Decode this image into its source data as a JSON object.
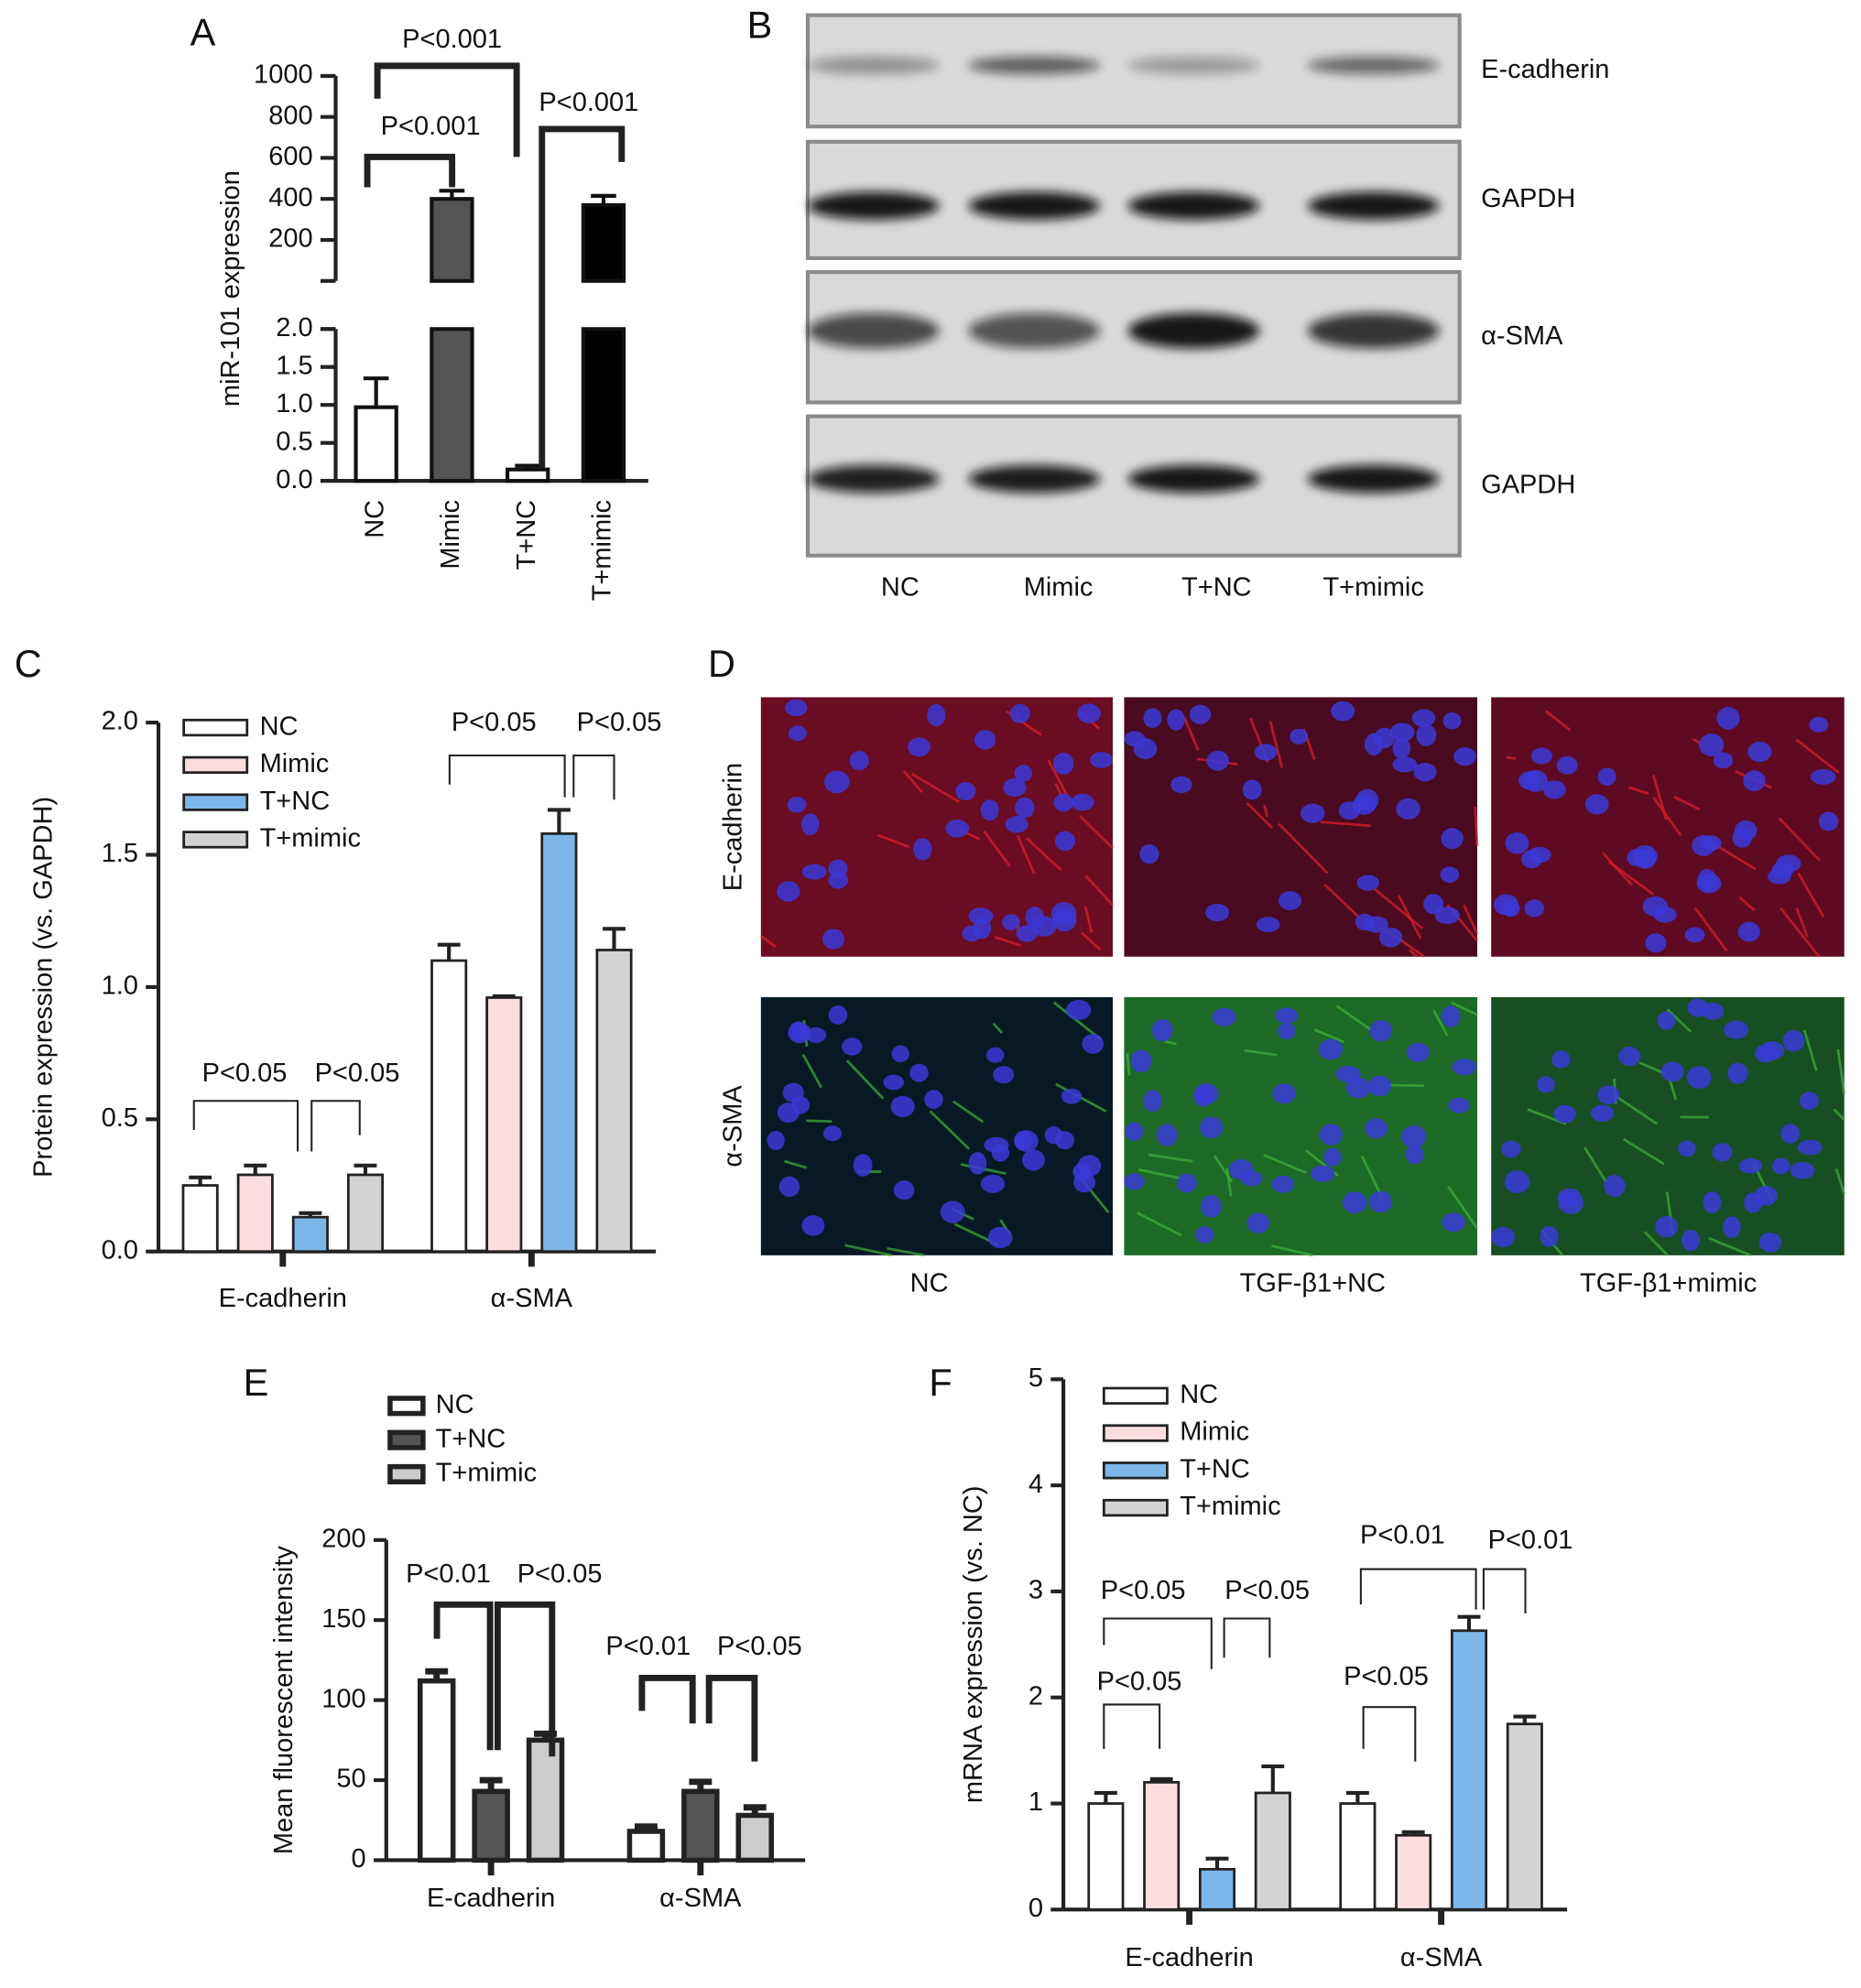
{
  "chart_data": [
    {
      "panel": "A",
      "type": "bar",
      "ylabel": "miR-101 expression",
      "categories": [
        "NC",
        "Mimic",
        "T+NC",
        "T+mimic"
      ],
      "values": [
        0.97,
        400,
        0.15,
        370
      ],
      "errors": [
        0.38,
        40,
        0.05,
        45
      ],
      "colors": [
        "#ffffff",
        "#555555",
        "#ffffff",
        "#000000"
      ],
      "ylim": [
        0,
        2
      ],
      "yticks": [
        {
          "value": 0,
          "label": "0.0"
        },
        {
          "value": 0.5,
          "label": "0.5"
        },
        {
          "value": 1,
          "label": "1.0"
        },
        {
          "value": 1.5,
          "label": "1.5"
        },
        {
          "value": 2,
          "label": "2.0"
        }
      ],
      "axis_break": {
        "ylim": [
          0,
          1000
        ],
        "yticks": [
          200,
          400,
          600,
          800,
          1000
        ]
      },
      "annotations": [
        "P<0.001",
        "P<0.001",
        "P<0.001"
      ]
    },
    {
      "panel": "C",
      "type": "grouped_bar",
      "ylabel": "Protein expression (vs. GAPDH)",
      "categories": [
        "E-cadherin",
        "α-SMA"
      ],
      "series": [
        {
          "name": "NC",
          "color": "#ffffff",
          "values": [
            0.25,
            1.1
          ],
          "errors": [
            0.03,
            0.06
          ]
        },
        {
          "name": "Mimic",
          "color": "#fbdcdf",
          "values": [
            0.29,
            0.96
          ],
          "errors": [
            0.035,
            0.005
          ]
        },
        {
          "name": "T+NC",
          "color": "#7db6e8",
          "values": [
            0.13,
            1.58
          ],
          "errors": [
            0.015,
            0.09
          ]
        },
        {
          "name": "T+mimic",
          "color": "#d3d3d3",
          "values": [
            0.29,
            1.14
          ],
          "errors": [
            0.035,
            0.08
          ]
        }
      ],
      "ylim": [
        0,
        2
      ],
      "yticks": [
        {
          "value": 0,
          "label": "0.0"
        },
        {
          "value": 0.5,
          "label": "0.5"
        },
        {
          "value": 1,
          "label": "1.0"
        },
        {
          "value": 1.5,
          "label": "1.5"
        },
        {
          "value": 2,
          "label": "2.0"
        }
      ],
      "annotations": [
        "P<0.05",
        "P<0.05",
        "P<0.05",
        "P<0.05"
      ]
    },
    {
      "panel": "E",
      "type": "grouped_bar",
      "ylabel": "Mean fluorescent intensity",
      "categories": [
        "E-cadherin",
        "α-SMA"
      ],
      "series": [
        {
          "name": "NC",
          "color": "#ffffff",
          "values": [
            112,
            18
          ],
          "errors": [
            6,
            3
          ]
        },
        {
          "name": "T+NC",
          "color": "#555555",
          "values": [
            43,
            43
          ],
          "errors": [
            7,
            6
          ]
        },
        {
          "name": "T+mimic",
          "color": "#cccccc",
          "values": [
            75,
            28
          ],
          "errors": [
            4,
            5
          ]
        }
      ],
      "ylim": [
        0,
        200
      ],
      "yticks": [
        0,
        50,
        100,
        150,
        200
      ],
      "annotations": [
        "P<0.01",
        "P<0.05",
        "P<0.01",
        "P<0.05"
      ]
    },
    {
      "panel": "F",
      "type": "grouped_bar",
      "ylabel": "mRNA expression (vs. NC)",
      "categories": [
        "E-cadherin",
        "α-SMA"
      ],
      "series": [
        {
          "name": "NC",
          "color": "#ffffff",
          "values": [
            1.0,
            1.0
          ],
          "errors": [
            0.1,
            0.1
          ]
        },
        {
          "name": "Mimic",
          "color": "#fbdcdf",
          "values": [
            1.2,
            0.7
          ],
          "errors": [
            0.03,
            0.03
          ]
        },
        {
          "name": "T+NC",
          "color": "#7db6e8",
          "values": [
            0.38,
            2.63
          ],
          "errors": [
            0.1,
            0.13
          ]
        },
        {
          "name": "T+mimic",
          "color": "#d3d3d3",
          "values": [
            1.1,
            1.75
          ],
          "errors": [
            0.25,
            0.07
          ]
        }
      ],
      "ylim": [
        0,
        5
      ],
      "yticks": [
        0,
        1,
        2,
        3,
        4,
        5
      ],
      "annotations": [
        "P<0.05",
        "P<0.05",
        "P<0.05",
        "P<0.01",
        "P<0.01",
        "P<0.05"
      ]
    }
  ],
  "blot": {
    "panel": "B",
    "rows": [
      "E-cadherin",
      "GAPDH",
      "α-SMA",
      "GAPDH"
    ],
    "lanes": [
      "NC",
      "Mimic",
      "T+NC",
      "T+mimic"
    ]
  },
  "micrographs": {
    "panel": "D",
    "rows": [
      "E-cadherin",
      "α-SMA"
    ],
    "columns": [
      "NC",
      "TGF-β1+NC",
      "TGF-β1+mimic"
    ]
  }
}
